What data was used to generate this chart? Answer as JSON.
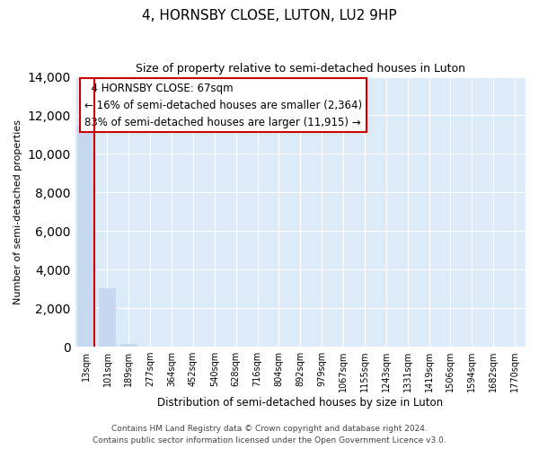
{
  "title": "4, HORNSBY CLOSE, LUTON, LU2 9HP",
  "subtitle": "Size of property relative to semi-detached houses in Luton",
  "xlabel": "Distribution of semi-detached houses by size in Luton",
  "ylabel": "Number of semi-detached properties",
  "bar_labels": [
    "13sqm",
    "101sqm",
    "189sqm",
    "277sqm",
    "364sqm",
    "452sqm",
    "540sqm",
    "628sqm",
    "716sqm",
    "804sqm",
    "892sqm",
    "979sqm",
    "1067sqm",
    "1155sqm",
    "1243sqm",
    "1331sqm",
    "1419sqm",
    "1506sqm",
    "1594sqm",
    "1682sqm",
    "1770sqm"
  ],
  "bar_values": [
    11450,
    3050,
    150,
    0,
    0,
    0,
    0,
    0,
    0,
    0,
    0,
    0,
    0,
    0,
    0,
    0,
    0,
    0,
    0,
    0,
    0
  ],
  "bar_color": "#c6d9f0",
  "highlight_bar_index": 0,
  "highlight_edge_color": "#cc0000",
  "ylim": [
    0,
    14000
  ],
  "yticks": [
    0,
    2000,
    4000,
    6000,
    8000,
    10000,
    12000,
    14000
  ],
  "annotation_title": "4 HORNSBY CLOSE: 67sqm",
  "annotation_line1": "← 16% of semi-detached houses are smaller (2,364)",
  "annotation_line2": "83% of semi-detached houses are larger (11,915) →",
  "footer1": "Contains HM Land Registry data © Crown copyright and database right 2024.",
  "footer2": "Contains public sector information licensed under the Open Government Licence v3.0.",
  "grid_color": "#c8d8e8",
  "background_color": "#ffffff",
  "plot_bg_color": "#ddeaf8"
}
